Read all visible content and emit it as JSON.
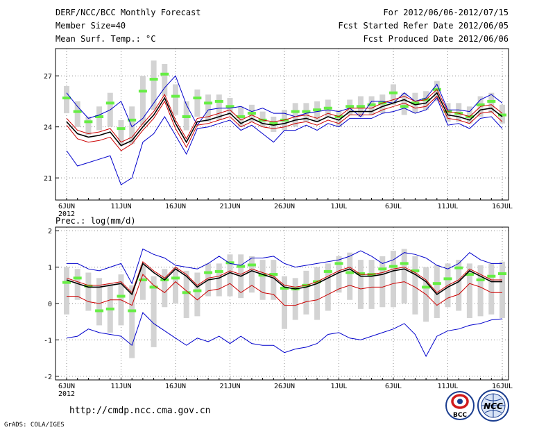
{
  "header": {
    "left": [
      "DERF/NCC/BCC Monthly Forecast",
      "Member Size=40",
      "Mean Surf. Temp.: °C"
    ],
    "right": [
      "For 2012/06/06-2012/07/15",
      "Fcst Started Refer Date 2012/06/05",
      "Fcst Produced Date 2012/06/06"
    ]
  },
  "footer": {
    "url": "http://cmdp.ncc.cma.gov.cn",
    "credit": "GrADS: COLA/IGES",
    "logo_left": "BCC",
    "logo_right": "NCC"
  },
  "colors": {
    "mean": "#000000",
    "inner": "#cc0000",
    "outer": "#0000cc",
    "box": "#d3d3d3",
    "median": "#66ee44"
  },
  "chart_data": [
    {
      "type": "line",
      "title": "Mean Surf. Temp.: °C",
      "ylabel": "°C",
      "ylim": [
        19.7,
        28.6
      ],
      "yticks": [
        21,
        24,
        27
      ],
      "xlabels": [
        "6JUN",
        "11JUN",
        "16JUN",
        "21JUN",
        "26JUN",
        "1JUL",
        "6JUL",
        "11JUL",
        "16JUL"
      ],
      "xlabel_year": "2012",
      "days": 41,
      "series": [
        {
          "name": "outer_max",
          "role": "outer",
          "values": [
            26,
            25.2,
            24.5,
            24.7,
            25.0,
            25.5,
            24.0,
            24.5,
            25.4,
            26.3,
            27.0,
            25.3,
            24.1,
            25.0,
            25.1,
            25.1,
            25.2,
            24.9,
            25.1,
            24.8,
            24.8,
            24.6,
            24.8,
            24.9,
            25.0,
            24.9,
            25.1,
            24.6,
            25.5,
            25.5,
            25.4,
            26.0,
            25.5,
            25.7,
            26.5,
            25.0,
            25.0,
            24.9,
            25.6,
            25.9,
            25.4
          ]
        },
        {
          "name": "inner_max",
          "role": "inner",
          "values": [
            24.5,
            23.8,
            23.6,
            23.7,
            23.9,
            23.1,
            23.4,
            24.2,
            24.9,
            25.9,
            24.4,
            23.3,
            24.5,
            24.6,
            24.8,
            25.0,
            24.4,
            24.7,
            24.4,
            24.3,
            24.4,
            24.6,
            24.7,
            24.5,
            24.8,
            24.6,
            25.1,
            25.1,
            25.1,
            25.4,
            25.6,
            25.8,
            25.5,
            25.6,
            26.2,
            24.9,
            24.8,
            24.6,
            25.2,
            25.3,
            24.8
          ]
        },
        {
          "name": "mean",
          "role": "mean",
          "values": [
            24.3,
            23.6,
            23.4,
            23.5,
            23.7,
            22.9,
            23.2,
            24.0,
            24.7,
            25.7,
            24.2,
            23.1,
            24.3,
            24.4,
            24.6,
            24.8,
            24.2,
            24.5,
            24.2,
            24.1,
            24.2,
            24.4,
            24.5,
            24.3,
            24.6,
            24.4,
            24.9,
            24.9,
            24.9,
            25.2,
            25.4,
            25.6,
            25.3,
            25.4,
            26.0,
            24.7,
            24.6,
            24.4,
            25.0,
            25.1,
            24.6
          ]
        },
        {
          "name": "inner_min",
          "role": "inner",
          "values": [
            24.1,
            23.3,
            23.1,
            23.2,
            23.4,
            22.6,
            23.0,
            23.8,
            24.5,
            25.5,
            23.9,
            22.8,
            24.1,
            24.2,
            24.4,
            24.6,
            24.0,
            24.3,
            24.0,
            23.9,
            24.0,
            24.2,
            24.3,
            24.1,
            24.4,
            24.2,
            24.7,
            24.7,
            24.7,
            25.0,
            25.2,
            25.4,
            25.1,
            25.2,
            25.8,
            24.5,
            24.4,
            24.2,
            24.8,
            24.9,
            24.3
          ]
        },
        {
          "name": "outer_min",
          "role": "outer",
          "values": [
            22.6,
            21.7,
            21.9,
            22.1,
            22.3,
            20.6,
            21.0,
            23.1,
            23.6,
            24.6,
            23.5,
            22.4,
            23.9,
            24.0,
            24.2,
            24.4,
            23.8,
            24.1,
            23.6,
            23.1,
            23.8,
            23.8,
            24.1,
            23.8,
            24.2,
            24.0,
            24.5,
            24.5,
            24.5,
            24.8,
            24.9,
            25.1,
            24.8,
            25.0,
            25.7,
            24.1,
            24.2,
            23.9,
            24.5,
            24.6,
            23.9
          ]
        }
      ],
      "boxes": [
        {
          "day": 0,
          "low": 24.8,
          "high": 26.4,
          "median": 25.7
        },
        {
          "day": 1,
          "low": 24.0,
          "high": 25.5,
          "median": 24.9
        },
        {
          "day": 2,
          "low": 23.5,
          "high": 24.6,
          "median": 24.3
        },
        {
          "day": 3,
          "low": 23.8,
          "high": 25.2,
          "median": 24.6
        },
        {
          "day": 4,
          "low": 24.0,
          "high": 26.0,
          "median": 25.4
        },
        {
          "day": 5,
          "low": 22.9,
          "high": 24.4,
          "median": 23.9
        },
        {
          "day": 6,
          "low": 23.0,
          "high": 25.2,
          "median": 24.4
        },
        {
          "day": 7,
          "low": 24.1,
          "high": 27.0,
          "median": 26.1
        },
        {
          "day": 8,
          "low": 25.0,
          "high": 27.9,
          "median": 26.8
        },
        {
          "day": 9,
          "low": 25.8,
          "high": 27.7,
          "median": 27.1
        },
        {
          "day": 10,
          "low": 24.7,
          "high": 26.5,
          "median": 25.8
        },
        {
          "day": 11,
          "low": 23.8,
          "high": 25.5,
          "median": 24.6
        },
        {
          "day": 12,
          "low": 24.6,
          "high": 26.2,
          "median": 25.7
        },
        {
          "day": 13,
          "low": 24.3,
          "high": 25.9,
          "median": 25.4
        },
        {
          "day": 14,
          "low": 24.4,
          "high": 25.9,
          "median": 25.5
        },
        {
          "day": 15,
          "low": 24.7,
          "high": 25.7,
          "median": 25.2
        },
        {
          "day": 16,
          "low": 24.0,
          "high": 25.2,
          "median": 24.6
        },
        {
          "day": 17,
          "low": 24.3,
          "high": 25.3,
          "median": 24.8
        },
        {
          "day": 18,
          "low": 24.0,
          "high": 24.9,
          "median": 24.4
        },
        {
          "day": 19,
          "low": 23.7,
          "high": 24.6,
          "median": 24.2
        },
        {
          "day": 20,
          "low": 23.8,
          "high": 25.0,
          "median": 24.4
        },
        {
          "day": 21,
          "low": 24.0,
          "high": 25.4,
          "median": 24.9
        },
        {
          "day": 22,
          "low": 24.3,
          "high": 25.4,
          "median": 24.9
        },
        {
          "day": 23,
          "low": 24.3,
          "high": 25.5,
          "median": 25.0
        },
        {
          "day": 24,
          "low": 24.6,
          "high": 25.6,
          "median": 25.1
        },
        {
          "day": 25,
          "low": 24.0,
          "high": 25.0,
          "median": 24.6
        },
        {
          "day": 26,
          "low": 24.7,
          "high": 25.6,
          "median": 25.2
        },
        {
          "day": 27,
          "low": 24.6,
          "high": 25.8,
          "median": 25.2
        },
        {
          "day": 28,
          "low": 24.7,
          "high": 25.8,
          "median": 25.3
        },
        {
          "day": 29,
          "low": 24.8,
          "high": 25.9,
          "median": 25.4
        },
        {
          "day": 30,
          "low": 25.3,
          "high": 26.5,
          "median": 26.0
        },
        {
          "day": 31,
          "low": 24.7,
          "high": 26.0,
          "median": 25.2
        },
        {
          "day": 32,
          "low": 24.8,
          "high": 26.0,
          "median": 25.4
        },
        {
          "day": 33,
          "low": 25.0,
          "high": 26.1,
          "median": 25.6
        },
        {
          "day": 34,
          "low": 25.5,
          "high": 26.7,
          "median": 26.2
        },
        {
          "day": 35,
          "low": 24.3,
          "high": 25.4,
          "median": 24.9
        },
        {
          "day": 36,
          "low": 24.3,
          "high": 25.4,
          "median": 24.8
        },
        {
          "day": 37,
          "low": 24.2,
          "high": 25.2,
          "median": 24.6
        },
        {
          "day": 38,
          "low": 24.6,
          "high": 25.8,
          "median": 25.3
        },
        {
          "day": 39,
          "low": 24.8,
          "high": 26.0,
          "median": 25.5
        },
        {
          "day": 40,
          "low": 24.2,
          "high": 25.3,
          "median": 24.7
        }
      ]
    },
    {
      "type": "line",
      "title": "Prec.: log(mm/d)",
      "ylabel": "log(mm/d)",
      "ylim": [
        -2.1,
        2.1
      ],
      "yticks": [
        -2,
        -1,
        0,
        1,
        2
      ],
      "xlabels": [
        "6JUN",
        "11JUN",
        "16JUN",
        "21JUN",
        "26JUN",
        "1JUL",
        "6JUL",
        "11JUL",
        "16JUL"
      ],
      "xlabel_year": "2012",
      "days": 41,
      "series": [
        {
          "name": "outer_max",
          "role": "outer",
          "values": [
            1.1,
            1.1,
            0.95,
            0.9,
            1.0,
            1.1,
            0.55,
            1.5,
            1.35,
            1.25,
            1.05,
            1.0,
            0.95,
            1.1,
            1.3,
            1.1,
            1.05,
            1.25,
            1.25,
            1.3,
            1.1,
            1.0,
            1.05,
            1.1,
            1.15,
            1.2,
            1.3,
            1.45,
            1.3,
            1.1,
            1.2,
            1.4,
            1.35,
            1.25,
            1.05,
            0.95,
            1.1,
            1.4,
            1.2,
            1.1,
            1.1
          ]
        },
        {
          "name": "mean",
          "role": "mean",
          "values": [
            0.65,
            0.55,
            0.45,
            0.45,
            0.5,
            0.55,
            0.25,
            1.1,
            0.85,
            0.65,
            0.95,
            0.75,
            0.45,
            0.65,
            0.7,
            0.85,
            0.75,
            0.9,
            0.8,
            0.7,
            0.45,
            0.4,
            0.45,
            0.55,
            0.7,
            0.85,
            0.95,
            0.75,
            0.75,
            0.8,
            0.9,
            0.95,
            0.8,
            0.6,
            0.25,
            0.45,
            0.6,
            0.9,
            0.75,
            0.6,
            0.6
          ]
        },
        {
          "name": "inner_max",
          "role": "inner",
          "values": [
            0.7,
            0.6,
            0.5,
            0.5,
            0.55,
            0.6,
            0.3,
            1.15,
            0.9,
            0.7,
            1.0,
            0.8,
            0.5,
            0.7,
            0.75,
            0.9,
            0.8,
            0.95,
            0.85,
            0.75,
            0.5,
            0.45,
            0.5,
            0.6,
            0.75,
            0.9,
            1.0,
            0.8,
            0.8,
            0.85,
            0.95,
            1.0,
            0.85,
            0.65,
            0.3,
            0.5,
            0.65,
            0.95,
            0.8,
            0.65,
            0.65
          ]
        },
        {
          "name": "inner_min",
          "role": "inner",
          "values": [
            0.2,
            0.2,
            0.05,
            0.0,
            0.1,
            0.1,
            -0.05,
            0.8,
            0.5,
            0.3,
            0.6,
            0.35,
            0.1,
            0.35,
            0.4,
            0.55,
            0.3,
            0.5,
            0.3,
            0.25,
            -0.05,
            -0.05,
            0.05,
            0.1,
            0.25,
            0.4,
            0.5,
            0.4,
            0.45,
            0.45,
            0.55,
            0.6,
            0.45,
            0.25,
            -0.05,
            0.15,
            0.25,
            0.55,
            0.45,
            0.3,
            0.3
          ]
        },
        {
          "name": "outer_min",
          "role": "outer",
          "values": [
            -0.95,
            -0.9,
            -0.7,
            -0.8,
            -0.85,
            -0.9,
            -1.15,
            -0.25,
            -0.55,
            -0.75,
            -0.95,
            -1.15,
            -0.95,
            -1.05,
            -0.9,
            -1.1,
            -0.9,
            -1.1,
            -1.15,
            -1.15,
            -1.35,
            -1.25,
            -1.2,
            -1.1,
            -0.85,
            -0.8,
            -0.95,
            -1.0,
            -0.9,
            -0.8,
            -0.7,
            -0.55,
            -0.85,
            -1.45,
            -0.9,
            -0.75,
            -0.7,
            -0.6,
            -0.55,
            -0.45,
            -0.42
          ]
        }
      ],
      "boxes": [
        {
          "day": 0,
          "low": -0.3,
          "high": 1.0,
          "median": 0.58
        },
        {
          "day": 1,
          "low": 0.1,
          "high": 0.95,
          "median": 0.7
        },
        {
          "day": 2,
          "low": -0.2,
          "high": 0.85,
          "median": 0.48
        },
        {
          "day": 3,
          "low": -0.6,
          "high": 0.7,
          "median": -0.2
        },
        {
          "day": 4,
          "low": -0.8,
          "high": 0.55,
          "median": -0.15
        },
        {
          "day": 5,
          "low": -0.6,
          "high": 0.8,
          "median": 0.2
        },
        {
          "day": 6,
          "low": -1.5,
          "high": 0.5,
          "median": -0.2
        },
        {
          "day": 7,
          "low": 0.1,
          "high": 1.05,
          "median": 0.65
        },
        {
          "day": 8,
          "low": -1.2,
          "high": 0.75,
          "median": 0.45
        },
        {
          "day": 9,
          "low": -0.1,
          "high": 0.95,
          "median": 0.65
        },
        {
          "day": 10,
          "low": 0.0,
          "high": 1.0,
          "median": 0.7
        },
        {
          "day": 11,
          "low": -0.4,
          "high": 0.9,
          "median": 0.3
        },
        {
          "day": 12,
          "low": -0.35,
          "high": 0.85,
          "median": 0.35
        },
        {
          "day": 13,
          "low": 0.2,
          "high": 1.1,
          "median": 0.85
        },
        {
          "day": 14,
          "low": 0.2,
          "high": 1.1,
          "median": 0.88
        },
        {
          "day": 15,
          "low": 0.2,
          "high": 1.35,
          "median": 1.12
        },
        {
          "day": 16,
          "low": 0.15,
          "high": 1.35,
          "median": 1.02
        },
        {
          "day": 17,
          "low": 0.3,
          "high": 1.3,
          "median": 1.06
        },
        {
          "day": 18,
          "low": 0.1,
          "high": 1.2,
          "median": 0.78
        },
        {
          "day": 19,
          "low": 0.1,
          "high": 1.2,
          "median": 0.8
        },
        {
          "day": 20,
          "low": -0.7,
          "high": 0.75,
          "median": 0.42
        },
        {
          "day": 21,
          "low": -0.45,
          "high": 0.7,
          "median": 0.4
        },
        {
          "day": 22,
          "low": -0.3,
          "high": 0.9,
          "median": 0.5
        },
        {
          "day": 23,
          "low": -0.45,
          "high": 1.0,
          "median": 0.6
        },
        {
          "day": 24,
          "low": -0.2,
          "high": 1.1,
          "median": 0.88
        },
        {
          "day": 25,
          "low": 0.3,
          "high": 1.3,
          "median": 1.1
        },
        {
          "day": 26,
          "low": 0.1,
          "high": 1.4,
          "median": 0.85
        },
        {
          "day": 27,
          "low": -0.15,
          "high": 1.2,
          "median": 0.82
        },
        {
          "day": 28,
          "low": -0.15,
          "high": 1.2,
          "median": 0.8
        },
        {
          "day": 29,
          "low": -0.1,
          "high": 1.3,
          "median": 0.95
        },
        {
          "day": 30,
          "low": -0.1,
          "high": 1.45,
          "median": 1.02
        },
        {
          "day": 31,
          "low": 0.0,
          "high": 1.5,
          "median": 1.1
        },
        {
          "day": 32,
          "low": -0.3,
          "high": 1.3,
          "median": 0.9
        },
        {
          "day": 33,
          "low": -0.5,
          "high": 1.0,
          "median": 0.45
        },
        {
          "day": 34,
          "low": -0.4,
          "high": 1.05,
          "median": 0.55
        },
        {
          "day": 35,
          "low": -0.1,
          "high": 1.1,
          "median": 0.68
        },
        {
          "day": 36,
          "low": -0.2,
          "high": 1.2,
          "median": 0.98
        },
        {
          "day": 37,
          "low": -0.4,
          "high": 1.1,
          "median": 0.8
        },
        {
          "day": 38,
          "low": -0.35,
          "high": 1.05,
          "median": 0.65
        },
        {
          "day": 39,
          "low": -0.3,
          "high": 1.1,
          "median": 0.75
        },
        {
          "day": 40,
          "low": -0.4,
          "high": 1.15,
          "median": 0.82
        }
      ]
    }
  ]
}
